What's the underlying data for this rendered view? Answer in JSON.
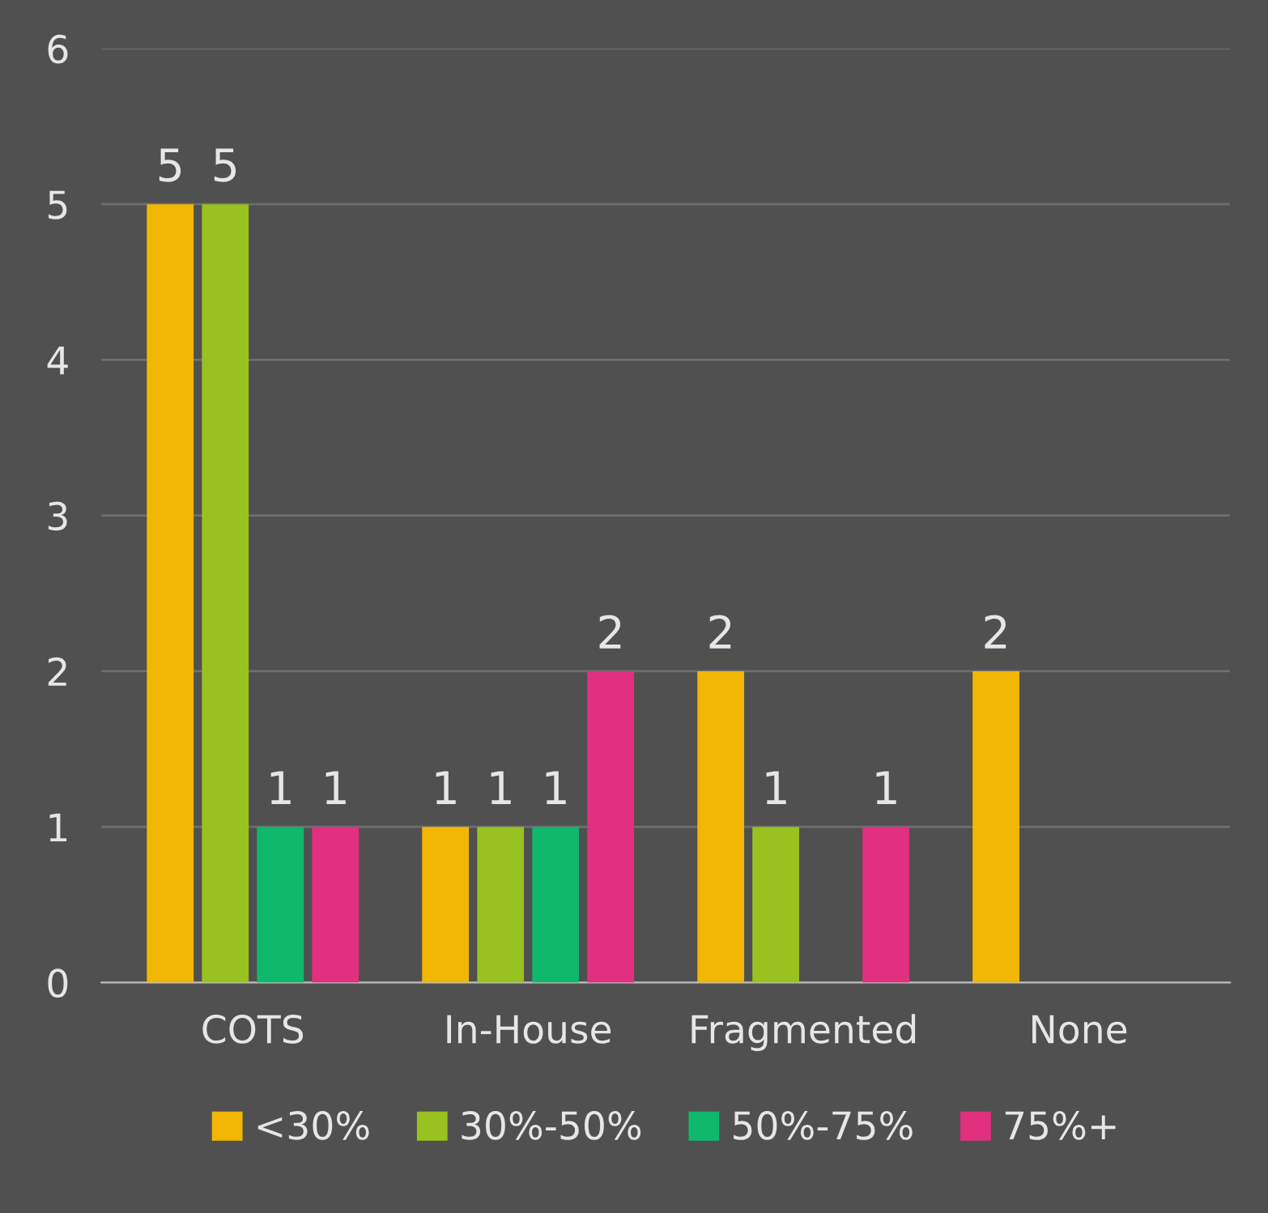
{
  "chart_data": {
    "type": "bar",
    "categories": [
      "COTS",
      "In-House",
      "Fragmented",
      "None"
    ],
    "series": [
      {
        "name": "<30%",
        "color": "#f2b705",
        "values": [
          5,
          1,
          2,
          2
        ]
      },
      {
        "name": "30%-50%",
        "color": "#98c21f",
        "values": [
          5,
          1,
          1,
          null
        ]
      },
      {
        "name": "50%-75%",
        "color": "#10b86c",
        "values": [
          1,
          1,
          null,
          null
        ]
      },
      {
        "name": "75%+",
        "color": "#e0307f",
        "values": [
          1,
          2,
          1,
          null
        ]
      }
    ],
    "ylim": [
      0,
      6
    ],
    "yticks": [
      0,
      1,
      2,
      3,
      4,
      5,
      6
    ],
    "grid": "y",
    "legend": "bottom",
    "data_labels": true
  }
}
